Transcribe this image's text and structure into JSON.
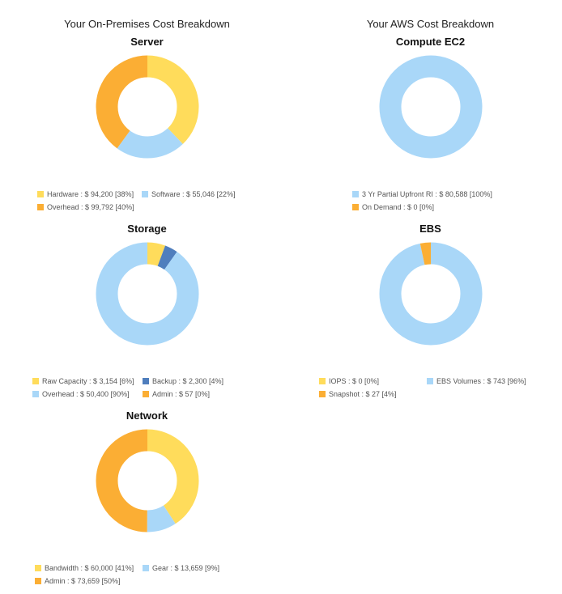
{
  "page": {
    "left_heading": "Your On-Premises Cost Breakdown",
    "right_heading": "Your AWS Cost Breakdown"
  },
  "colors": {
    "yellow": "#FFDC5B",
    "orange": "#FBAE34",
    "lightblue": "#A9D7F8",
    "darkblue": "#4F7EBD"
  },
  "chart_data": [
    {
      "id": "server",
      "type": "pie",
      "title": "Server",
      "slices": [
        {
          "label": "Hardware",
          "value": 94200,
          "value_text": "$ 94,200",
          "pct_text": "[38%]",
          "color": "#FFDC5B"
        },
        {
          "label": "Software",
          "value": 55046,
          "value_text": "$ 55,046",
          "pct_text": "[22%]",
          "color": "#A9D7F8"
        },
        {
          "label": "Overhead",
          "value": 99792,
          "value_text": "$ 99,792",
          "pct_text": "[40%]",
          "color": "#FBAE34"
        }
      ]
    },
    {
      "id": "storage",
      "type": "pie",
      "title": "Storage",
      "slices": [
        {
          "label": "Raw Capacity",
          "value": 3154,
          "value_text": "$ 3,154",
          "pct_text": "[6%]",
          "color": "#FFDC5B"
        },
        {
          "label": "Backup",
          "value": 2300,
          "value_text": "$ 2,300",
          "pct_text": "[4%]",
          "color": "#4F7EBD"
        },
        {
          "label": "Overhead",
          "value": 50400,
          "value_text": "$ 50,400",
          "pct_text": "[90%]",
          "color": "#A9D7F8"
        },
        {
          "label": "Admin",
          "value": 57,
          "value_text": "$ 57",
          "pct_text": "[0%]",
          "color": "#FBAE34"
        }
      ]
    },
    {
      "id": "network",
      "type": "pie",
      "title": "Network",
      "slices": [
        {
          "label": "Bandwidth",
          "value": 60000,
          "value_text": "$ 60,000",
          "pct_text": "[41%]",
          "color": "#FFDC5B"
        },
        {
          "label": "Gear",
          "value": 13659,
          "value_text": "$ 13,659",
          "pct_text": "[9%]",
          "color": "#A9D7F8"
        },
        {
          "label": "Admin",
          "value": 73659,
          "value_text": "$ 73,659",
          "pct_text": "[50%]",
          "color": "#FBAE34"
        }
      ]
    },
    {
      "id": "ec2",
      "type": "pie",
      "title": "Compute EC2",
      "slices": [
        {
          "label": "3 Yr Partial Upfront RI",
          "value": 80588,
          "value_text": "$ 80,588",
          "pct_text": "[100%]",
          "color": "#A9D7F8"
        },
        {
          "label": "On Demand",
          "value": 0,
          "value_text": "$ 0",
          "pct_text": "[0%]",
          "color": "#FBAE34"
        }
      ]
    },
    {
      "id": "ebs",
      "type": "pie",
      "title": "EBS",
      "slices": [
        {
          "label": "IOPS",
          "value": 0,
          "value_text": "$ 0",
          "pct_text": "[0%]",
          "color": "#FFDC5B"
        },
        {
          "label": "EBS Volumes",
          "value": 743,
          "value_text": "$ 743",
          "pct_text": "[96%]",
          "color": "#A9D7F8"
        },
        {
          "label": "Snapshot",
          "value": 27,
          "value_text": "$ 27",
          "pct_text": "[4%]",
          "color": "#FBAE34"
        }
      ]
    }
  ]
}
